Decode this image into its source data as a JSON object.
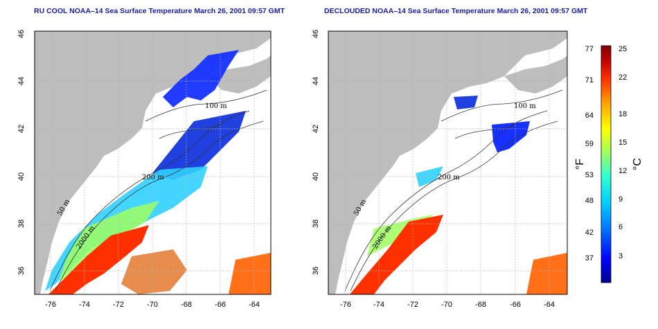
{
  "panels": [
    {
      "title": "RU COOL NOAA–14 Sea Surface Temperature March 26, 2001 09:57 GMT"
    },
    {
      "title": "DECLOUDED NOAA–14 Sea Surface Temperature March 26, 2001 09:57 GMT"
    }
  ],
  "map": {
    "lon_ticks": [
      "-76",
      "-74",
      "-72",
      "-70",
      "-68",
      "-66",
      "-64"
    ],
    "lat_ticks": [
      "36",
      "38",
      "40",
      "42",
      "44",
      "46"
    ],
    "contour_labels": [
      "100 m",
      "200 m",
      "50 m",
      "2000 m"
    ],
    "land_color": "#bdbdbd",
    "grid": true
  },
  "colorbar": {
    "f_label": "°F",
    "c_label": "°C",
    "f_ticks": [
      "77",
      "71",
      "64",
      "59",
      "53",
      "48",
      "42",
      "37"
    ],
    "c_ticks": [
      "25",
      "22",
      "18",
      "15",
      "12",
      "9",
      "6",
      "3"
    ],
    "colors": [
      "#00008f",
      "#0000ff",
      "#0070ff",
      "#00d0ff",
      "#30ffd0",
      "#a0ff60",
      "#ffff00",
      "#ffa000",
      "#ff3000",
      "#c00000",
      "#800000"
    ]
  },
  "chart_data": {
    "type": "heatmap",
    "title": "Sea Surface Temperature",
    "xlim": [
      -77,
      -63
    ],
    "ylim": [
      35,
      46
    ],
    "x_ticks": [
      -76,
      -74,
      -72,
      -70,
      -68,
      -66,
      -64
    ],
    "y_ticks": [
      36,
      38,
      40,
      42,
      44,
      46
    ],
    "colorbar_celsius": [
      3,
      6,
      9,
      12,
      15,
      18,
      22,
      25
    ],
    "colorbar_fahrenheit": [
      37,
      42,
      48,
      53,
      59,
      64,
      71,
      77
    ]
  }
}
